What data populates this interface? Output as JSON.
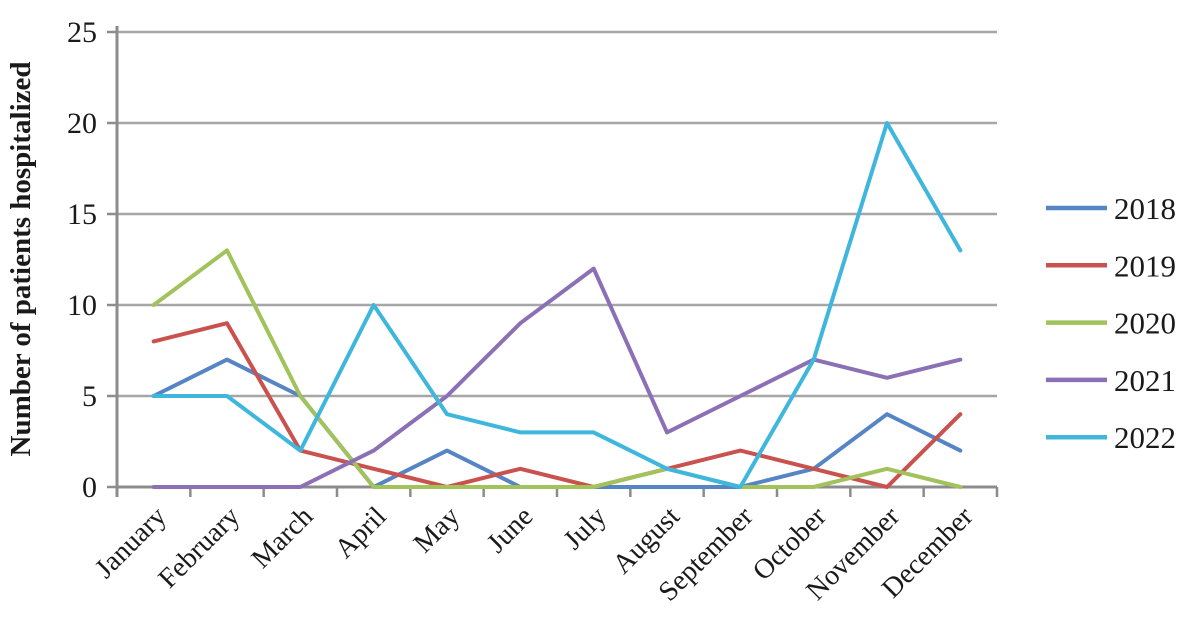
{
  "chart_data": {
    "type": "line",
    "title": "",
    "ylabel": "Number of patients hospitalized",
    "xlabel": "",
    "categories": [
      "January",
      "February",
      "March",
      "April",
      "May",
      "June",
      "July",
      "August",
      "September",
      "October",
      "November",
      "December"
    ],
    "y_ticks": [
      0,
      5,
      10,
      15,
      20,
      25
    ],
    "ylim": [
      0,
      25
    ],
    "grid": "horizontal",
    "legend_position": "right",
    "series": [
      {
        "name": "2018",
        "color": "#5585C5",
        "values": [
          5,
          7,
          5,
          0,
          2,
          0,
          0,
          0,
          0,
          1,
          4,
          2
        ]
      },
      {
        "name": "2019",
        "color": "#C9524E",
        "values": [
          8,
          9,
          2,
          1,
          0,
          1,
          0,
          1,
          2,
          1,
          0,
          4
        ]
      },
      {
        "name": "2020",
        "color": "#A2C25B",
        "values": [
          10,
          13,
          5,
          0,
          0,
          0,
          0,
          1,
          0,
          0,
          1,
          0
        ]
      },
      {
        "name": "2021",
        "color": "#8C70B5",
        "values": [
          0,
          0,
          0,
          2,
          5,
          9,
          12,
          3,
          5,
          7,
          6,
          7
        ]
      },
      {
        "name": "2022",
        "color": "#3FB7DC",
        "values": [
          5,
          5,
          2,
          10,
          4,
          3,
          3,
          1,
          0,
          7,
          20,
          13
        ]
      }
    ],
    "axis_color": "#8C8C8C",
    "grid_color": "#A6A6A6"
  }
}
